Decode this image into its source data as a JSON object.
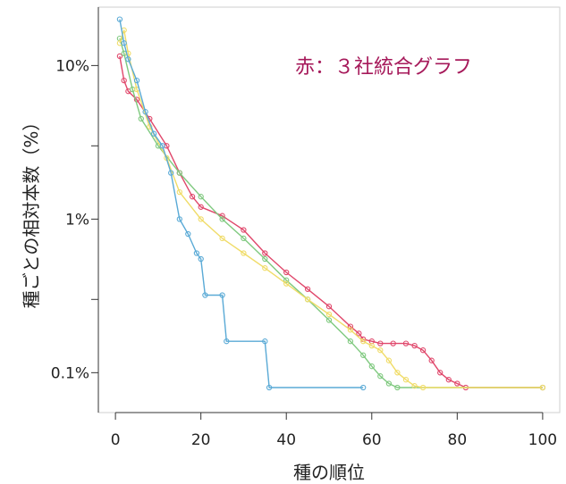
{
  "chart_data": {
    "type": "line",
    "title": "",
    "xlabel": "種の順位",
    "ylabel": "種ごとの相対本数（%）",
    "xlim": [
      -4,
      104
    ],
    "ylim": [
      0.055,
      24
    ],
    "yscale": "log",
    "x_ticks": [
      0,
      20,
      40,
      60,
      80,
      100
    ],
    "x_tick_labels": [
      "0",
      "20",
      "40",
      "60",
      "80",
      "100"
    ],
    "y_ticks": [
      0.1,
      1,
      10
    ],
    "y_tick_labels": [
      "0.1%",
      "1%",
      "10%"
    ],
    "y_minor_ticks": [
      0.3,
      3
    ],
    "annotation": {
      "text": "赤：３社統合グラフ",
      "color": "#a6195a"
    },
    "grid": false,
    "series": [
      {
        "color": "#e0476b",
        "points": [
          [
            1,
            11.5
          ],
          [
            2,
            8
          ],
          [
            3,
            6.8
          ],
          [
            5,
            6
          ],
          [
            8,
            4.5
          ],
          [
            12,
            3
          ],
          [
            15,
            2
          ],
          [
            18,
            1.4
          ],
          [
            20,
            1.2
          ],
          [
            25,
            1.05
          ],
          [
            30,
            0.85
          ],
          [
            35,
            0.6
          ],
          [
            40,
            0.45
          ],
          [
            45,
            0.35
          ],
          [
            50,
            0.27
          ],
          [
            55,
            0.2
          ],
          [
            57,
            0.18
          ],
          [
            58,
            0.165
          ],
          [
            60,
            0.16
          ],
          [
            62,
            0.155
          ],
          [
            65,
            0.155
          ],
          [
            68,
            0.155
          ],
          [
            70,
            0.15
          ],
          [
            72,
            0.14
          ],
          [
            74,
            0.12
          ],
          [
            76,
            0.1
          ],
          [
            78,
            0.09
          ],
          [
            80,
            0.085
          ],
          [
            82,
            0.08
          ],
          [
            100,
            0.08
          ]
        ]
      },
      {
        "color": "#7fc97f",
        "points": [
          [
            1,
            15
          ],
          [
            2,
            12
          ],
          [
            4,
            7
          ],
          [
            6,
            4.5
          ],
          [
            10,
            3
          ],
          [
            15,
            2
          ],
          [
            20,
            1.4
          ],
          [
            25,
            1
          ],
          [
            30,
            0.75
          ],
          [
            35,
            0.55
          ],
          [
            40,
            0.4
          ],
          [
            45,
            0.3
          ],
          [
            50,
            0.22
          ],
          [
            55,
            0.16
          ],
          [
            58,
            0.13
          ],
          [
            60,
            0.11
          ],
          [
            62,
            0.095
          ],
          [
            64,
            0.085
          ],
          [
            66,
            0.08
          ],
          [
            100,
            0.08
          ]
        ]
      },
      {
        "color": "#f0dc68",
        "points": [
          [
            1,
            14
          ],
          [
            2,
            17
          ],
          [
            3,
            12
          ],
          [
            5,
            7
          ],
          [
            8,
            4
          ],
          [
            12,
            2.5
          ],
          [
            15,
            1.5
          ],
          [
            20,
            1
          ],
          [
            25,
            0.75
          ],
          [
            30,
            0.6
          ],
          [
            35,
            0.48
          ],
          [
            40,
            0.38
          ],
          [
            45,
            0.3
          ],
          [
            50,
            0.24
          ],
          [
            55,
            0.19
          ],
          [
            58,
            0.16
          ],
          [
            60,
            0.15
          ],
          [
            62,
            0.14
          ],
          [
            64,
            0.12
          ],
          [
            66,
            0.1
          ],
          [
            68,
            0.09
          ],
          [
            70,
            0.082
          ],
          [
            72,
            0.08
          ],
          [
            100,
            0.08
          ]
        ]
      },
      {
        "color": "#5aaad6",
        "points": [
          [
            1,
            20
          ],
          [
            2,
            14
          ],
          [
            3,
            11
          ],
          [
            5,
            8
          ],
          [
            7,
            5
          ],
          [
            9,
            3.6
          ],
          [
            11,
            3
          ],
          [
            13,
            2
          ],
          [
            15,
            1
          ],
          [
            17,
            0.8
          ],
          [
            19,
            0.6
          ],
          [
            20,
            0.55
          ],
          [
            21,
            0.32
          ],
          [
            25,
            0.32
          ],
          [
            26,
            0.16
          ],
          [
            35,
            0.16
          ],
          [
            36,
            0.08
          ],
          [
            58,
            0.08
          ]
        ]
      }
    ]
  }
}
